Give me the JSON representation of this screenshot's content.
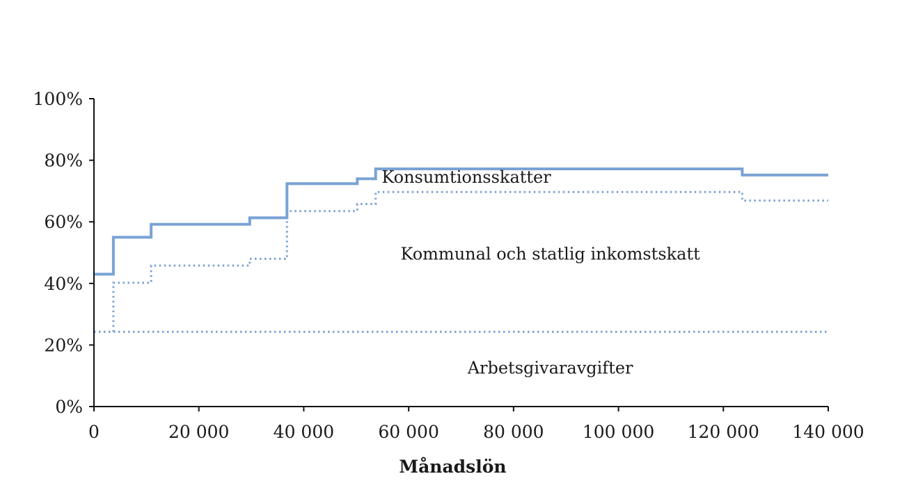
{
  "chart_data": {
    "type": "line",
    "xlabel": "Månadslön",
    "ylabel": "",
    "xlim": [
      0,
      140000
    ],
    "ylim": [
      0,
      100
    ],
    "x_ticks": [
      0,
      20000,
      40000,
      60000,
      80000,
      100000,
      120000,
      140000
    ],
    "x_tick_labels": [
      "0",
      "20 000",
      "40 000",
      "60 000",
      "80 000",
      "100 000",
      "120 000",
      "140 000"
    ],
    "y_ticks": [
      0,
      20,
      40,
      60,
      80,
      100
    ],
    "y_tick_labels": [
      "0%",
      "20%",
      "40%",
      "60%",
      "80%",
      "100%"
    ],
    "grid": false,
    "color": "#7aa3d4",
    "series": [
      {
        "style": "solid",
        "step": true,
        "x": [
          0,
          3700,
          10900,
          29700,
          36800,
          50200,
          53700,
          123600,
          140000
        ],
        "y": [
          43.0,
          55.0,
          59.2,
          61.3,
          72.4,
          74.0,
          77.2,
          75.2,
          75.2
        ]
      },
      {
        "style": "dotted",
        "step": true,
        "x": [
          0,
          3700,
          10900,
          29700,
          36800,
          50200,
          53700,
          123600,
          140000
        ],
        "y": [
          24.3,
          40.2,
          45.8,
          48.0,
          63.5,
          65.8,
          69.7,
          66.9,
          66.9
        ]
      },
      {
        "style": "dotted",
        "step": true,
        "x": [
          0,
          140000
        ],
        "y": [
          24.3,
          24.3
        ]
      }
    ],
    "annotations": [
      {
        "text": "Konsumtionsskatter",
        "x": 71000,
        "y": 74.5
      },
      {
        "text": "Kommunal och statlig inkomstskatt",
        "x": 87000,
        "y": 49.5
      },
      {
        "text": "Arbetsgivaravgifter",
        "x": 87000,
        "y": 12.5
      }
    ]
  }
}
